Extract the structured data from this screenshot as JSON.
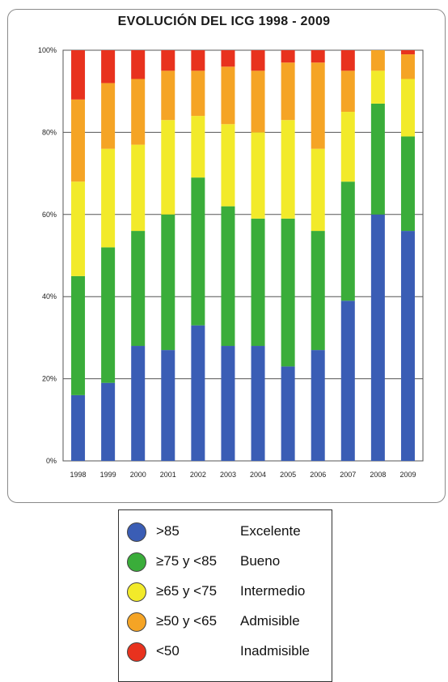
{
  "chart_data": {
    "type": "bar",
    "stacked": true,
    "title": "EVOLUCIÓN DEL ICG 1998 - 2009",
    "xlabel": "",
    "ylabel": "",
    "ylim": [
      0,
      100
    ],
    "y_ticks": [
      "0%",
      "20%",
      "40%",
      "60%",
      "80%",
      "100%"
    ],
    "grid": true,
    "categories": [
      "1998",
      "1999",
      "2000",
      "2001",
      "2002",
      "2003",
      "2004",
      "2005",
      "2006",
      "2007",
      "2008",
      "2009"
    ],
    "series": [
      {
        "name": "Excelente",
        "color": "#3a5db5",
        "values": [
          16,
          19,
          28,
          27,
          33,
          28,
          28,
          23,
          27,
          39,
          60,
          56
        ]
      },
      {
        "name": "Bueno",
        "color": "#3aad3a",
        "values": [
          29,
          33,
          28,
          33,
          36,
          34,
          31,
          36,
          29,
          29,
          27,
          23
        ]
      },
      {
        "name": "Intermedio",
        "color": "#f2ea2a",
        "values": [
          23,
          24,
          21,
          23,
          15,
          20,
          21,
          24,
          20,
          17,
          8,
          14
        ]
      },
      {
        "name": "Admisible",
        "color": "#f5a425",
        "values": [
          20,
          16,
          16,
          12,
          11,
          14,
          15,
          14,
          21,
          10,
          5,
          6
        ]
      },
      {
        "name": "Inadmisible",
        "color": "#e8321e",
        "values": [
          12,
          8,
          7,
          5,
          5,
          4,
          5,
          3,
          3,
          5,
          0,
          1
        ]
      }
    ]
  },
  "legend": {
    "items": [
      {
        "range": ">85",
        "label": "Excelente",
        "color": "#3a5db5"
      },
      {
        "range": "≥75 y <85",
        "label": "Bueno",
        "color": "#3aad3a"
      },
      {
        "range": "≥65 y <75",
        "label": "Intermedio",
        "color": "#f2ea2a"
      },
      {
        "range": "≥50 y <65",
        "label": "Admisible",
        "color": "#f5a425"
      },
      {
        "range": "<50",
        "label": "Inadmisible",
        "color": "#e8321e"
      }
    ]
  }
}
